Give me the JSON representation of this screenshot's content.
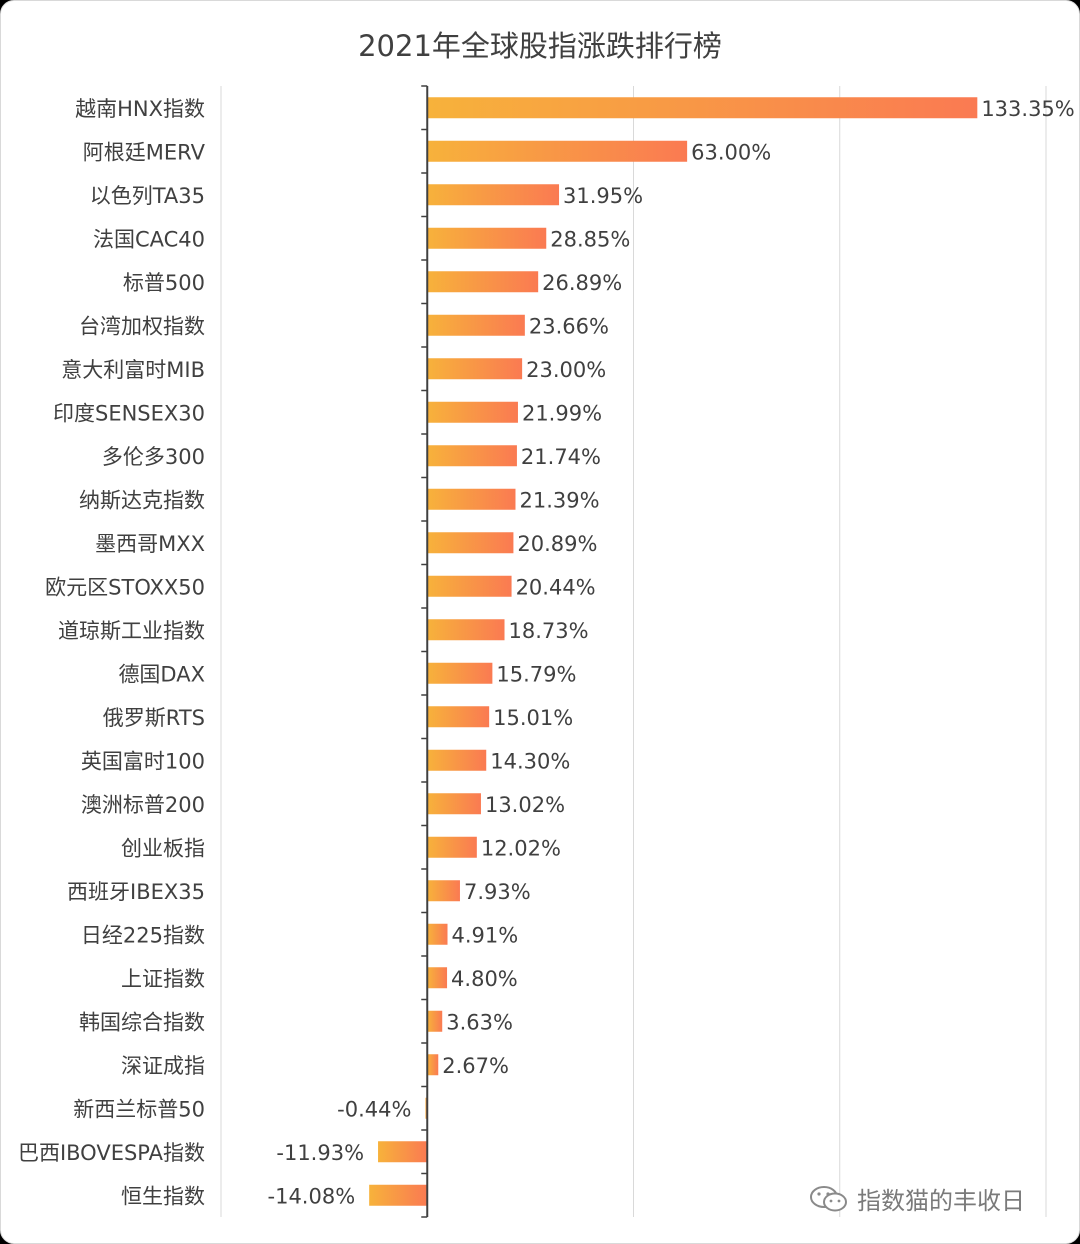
{
  "chart_data": {
    "type": "bar",
    "orientation": "horizontal",
    "title": "2021年全球股指涨跌排行榜",
    "categories": [
      "越南HNX指数",
      "阿根廷MERV",
      "以色列TA35",
      "法国CAC40",
      "标普500",
      "台湾加权指数",
      "意大利富时MIB",
      "印度SENSEX30",
      "多伦多300",
      "纳斯达克指数",
      "墨西哥MXX",
      "欧元区STOXX50",
      "道琼斯工业指数",
      "德国DAX",
      "俄罗斯RTS",
      "英国富时100",
      "澳洲标普200",
      "创业板指",
      "西班牙IBEX35",
      "日经225指数",
      "上证指数",
      "韩国综合指数",
      "深证成指",
      "新西兰标普50",
      "巴西IBOVESPA指数",
      "恒生指数"
    ],
    "values": [
      133.35,
      63.0,
      31.95,
      28.85,
      26.89,
      23.66,
      23.0,
      21.99,
      21.74,
      21.39,
      20.89,
      20.44,
      18.73,
      15.79,
      15.01,
      14.3,
      13.02,
      12.02,
      7.93,
      4.91,
      4.8,
      3.63,
      2.67,
      -0.44,
      -11.93,
      -14.08
    ],
    "labels": [
      "133.35%",
      "63.00%",
      "31.95%",
      "28.85%",
      "26.89%",
      "23.66%",
      "23.00%",
      "21.99%",
      "21.74%",
      "21.39%",
      "20.89%",
      "20.44%",
      "18.73%",
      "15.79%",
      "15.01%",
      "14.30%",
      "13.02%",
      "12.02%",
      "7.93%",
      "4.91%",
      "4.80%",
      "3.63%",
      "2.67%",
      "-0.44%",
      "-11.93%",
      "-14.08%"
    ],
    "unit": "%",
    "xlim": [
      -50,
      150
    ],
    "grid": true,
    "colors": {
      "bar_start": "#f7b23b",
      "bar_end": "#fa7a52",
      "grid": "#d9d9d9",
      "axis": "#404040"
    }
  },
  "watermark": {
    "text": "指数猫的丰收日",
    "icon": "wechat-icon"
  }
}
